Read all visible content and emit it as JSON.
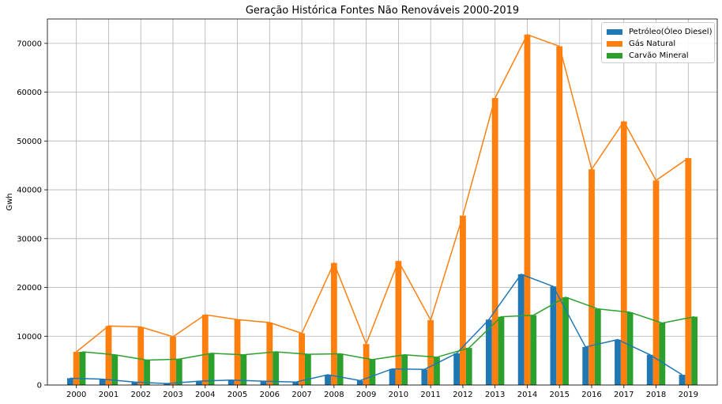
{
  "chart_data": {
    "type": "bar",
    "title": "Geração Histórica Fontes Não Renováveis 2000-2019",
    "xlabel": "",
    "ylabel": "Gwh",
    "ylim": [
      0,
      75000
    ],
    "yticks": [
      0,
      10000,
      20000,
      30000,
      40000,
      50000,
      60000,
      70000
    ],
    "grid": true,
    "legend_position": "top-right",
    "categories": [
      "2000",
      "2001",
      "2002",
      "2003",
      "2004",
      "2005",
      "2006",
      "2007",
      "2008",
      "2009",
      "2010",
      "2011",
      "2012",
      "2013",
      "2014",
      "2015",
      "2016",
      "2017",
      "2018",
      "2019"
    ],
    "series": [
      {
        "name": "Petróleo(Óleo Diesel)",
        "color": "#1f77b4",
        "values": [
          1400,
          1200,
          600,
          300,
          800,
          1000,
          800,
          600,
          2100,
          900,
          3300,
          3200,
          6500,
          13400,
          22700,
          20200,
          7800,
          9300,
          6200,
          2100
        ]
      },
      {
        "name": "Gás Natural",
        "color": "#ff7f0e",
        "values": [
          6800,
          12100,
          11900,
          9900,
          14400,
          13400,
          12800,
          10600,
          25000,
          8400,
          25400,
          13300,
          34700,
          58800,
          71800,
          69400,
          44200,
          54000,
          41900,
          46500
        ]
      },
      {
        "name": "Carvão Mineral",
        "color": "#2ca02c",
        "values": [
          6800,
          6200,
          5100,
          5300,
          6500,
          6200,
          6800,
          6300,
          6400,
          5200,
          6200,
          5700,
          7600,
          14000,
          14300,
          18000,
          15600,
          14900,
          12700,
          14000
        ]
      }
    ]
  }
}
